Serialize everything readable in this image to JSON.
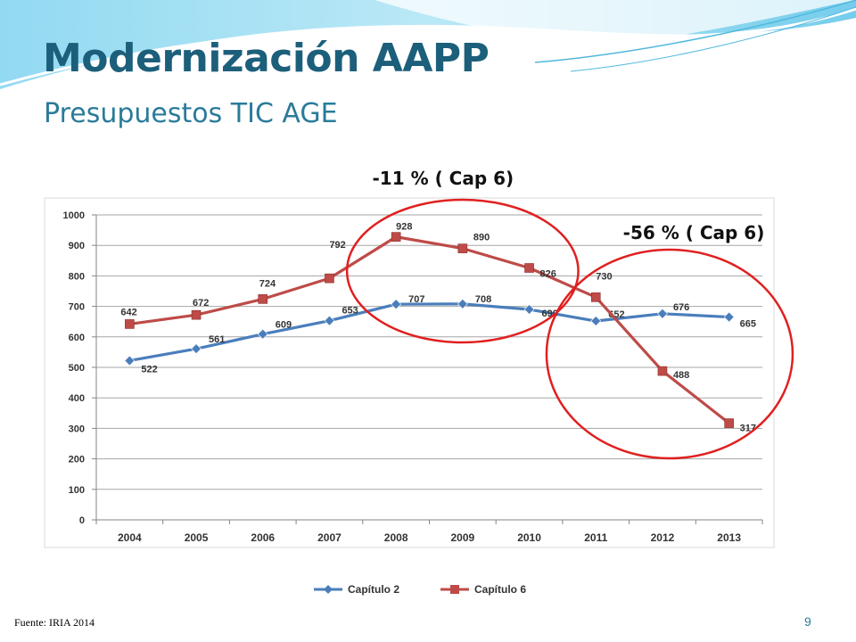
{
  "slide": {
    "title": "Modernización AAPP",
    "subtitle": "Presupuestos TIC AGE",
    "footer": "Fuente: IRIA 2014",
    "page_number": "9"
  },
  "chart_data": {
    "type": "line",
    "categories": [
      "2004",
      "2005",
      "2006",
      "2007",
      "2008",
      "2009",
      "2010",
      "2011",
      "2012",
      "2013"
    ],
    "series": [
      {
        "name": "Capítulo 2",
        "color": "#4a7ebb",
        "marker": "diamond",
        "values": [
          522,
          561,
          609,
          653,
          707,
          708,
          690,
          652,
          676,
          665
        ]
      },
      {
        "name": "Capítulo 6",
        "color": "#be4b48",
        "marker": "square",
        "values": [
          642,
          672,
          724,
          792,
          928,
          890,
          826,
          730,
          488,
          317
        ]
      }
    ],
    "ylim": [
      0,
      1000
    ],
    "yticks": [
      0,
      100,
      200,
      300,
      400,
      500,
      600,
      700,
      800,
      900,
      1000
    ],
    "grid": true,
    "legend": "bottom",
    "annotations": [
      {
        "text": "-11 % ( Cap 6)",
        "highlight_years": [
          "2008",
          "2010"
        ],
        "color": "#e02020"
      },
      {
        "text": "-56 % ( Cap 6)",
        "highlight_years": [
          "2011",
          "2013"
        ],
        "color": "#e02020"
      }
    ]
  }
}
